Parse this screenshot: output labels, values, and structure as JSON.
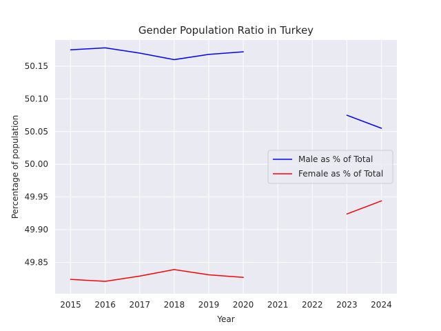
{
  "chart_data": {
    "type": "line",
    "title": "Gender Population Ratio in Turkey",
    "xlabel": "Year",
    "ylabel": "Percentage of population",
    "x": [
      2015,
      2016,
      2017,
      2018,
      2019,
      2020,
      2021,
      2022,
      2023,
      2024
    ],
    "xlim": [
      2014.55,
      2024.45
    ],
    "ylim": [
      49.802,
      50.19
    ],
    "yticks": [
      49.85,
      49.9,
      49.95,
      50.0,
      50.05,
      50.1,
      50.15
    ],
    "ytick_labels": [
      "49.85",
      "49.90",
      "49.95",
      "50.00",
      "50.05",
      "50.10",
      "50.15"
    ],
    "grid": true,
    "legend_position": "center-right",
    "series": [
      {
        "name": "Male as % of Total",
        "color": "#0000ff",
        "values": [
          50.175,
          50.178,
          50.17,
          50.16,
          50.168,
          50.172,
          null,
          null,
          50.075,
          50.055
        ]
      },
      {
        "name": "Female as % of Total",
        "color": "#ff0000",
        "values": [
          49.824,
          49.821,
          49.829,
          49.839,
          49.831,
          49.827,
          null,
          null,
          49.924,
          49.944
        ]
      }
    ]
  }
}
